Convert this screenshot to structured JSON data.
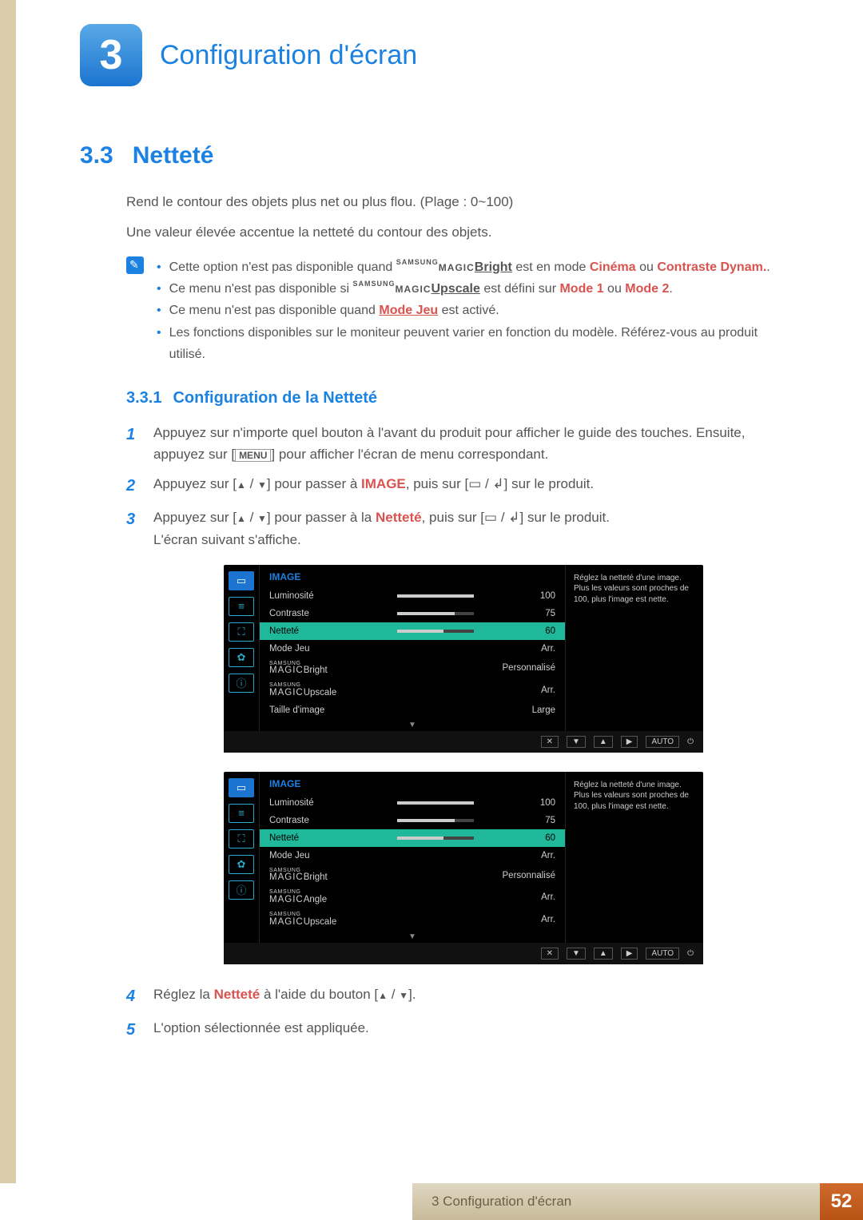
{
  "chapter": {
    "number": "3",
    "title": "Configuration d'écran"
  },
  "section": {
    "number": "3.3",
    "title": "Netteté"
  },
  "intro": {
    "line1": "Rend le contour des objets plus net ou plus flou. (Plage : 0~100)",
    "line2": "Une valeur élevée accentue la netteté du contour des objets."
  },
  "magic_prefix": "SAMSUNG",
  "magic_word": "MAGIC",
  "notes": {
    "n1a": "Cette option n'est pas disponible quand ",
    "n1b_bright": "Bright",
    "n1c": " est en mode ",
    "n1d_cinema": "Cinéma",
    "n1e": " ou ",
    "n1f_dynam": "Contraste Dynam.",
    "n1g": ".",
    "n2a": "Ce menu n'est pas disponible si ",
    "n2b_upscale": "Upscale",
    "n2c": " est défini sur ",
    "n2d_mode1": "Mode 1",
    "n2e": " ou ",
    "n2f_mode2": "Mode 2",
    "n2g": ".",
    "n3a": "Ce menu n'est pas disponible quand ",
    "n3b_modejeu": "Mode Jeu",
    "n3c": " est activé.",
    "n4": "Les fonctions disponibles sur le moniteur peuvent varier en fonction du modèle. Référez-vous au produit utilisé."
  },
  "subsec": {
    "number": "3.3.1",
    "title": "Configuration de la Netteté"
  },
  "steps": {
    "s1a": "Appuyez sur n'importe quel bouton à l'avant du produit pour afficher le guide des touches. Ensuite, appuyez sur [",
    "s1b_menu": "MENU",
    "s1c": "] pour afficher l'écran de menu correspondant.",
    "s2a": "Appuyez sur [",
    "s2b": "] pour passer à ",
    "s2c_image": "IMAGE",
    "s2d": ", puis sur [",
    "s2e": "] sur le produit.",
    "s3a": "Appuyez sur [",
    "s3b": "] pour passer à la ",
    "s3c_nettete": "Netteté",
    "s3d": ", puis sur [",
    "s3e": "] sur le produit.",
    "s3f": "L'écran suivant s'affiche.",
    "s4a": "Réglez la ",
    "s4b_nettete": "Netteté",
    "s4c": " à l'aide du bouton [",
    "s4d": "].",
    "s5": "L'option sélectionnée est appliquée."
  },
  "arrow_up": "▲",
  "arrow_down": "▼",
  "rect_icon": "▭",
  "enter_icon": "↲",
  "osd_common": {
    "category": "IMAGE",
    "tooltip": "Réglez la netteté d'une image. Plus les valeurs sont proches de 100, plus l'image est nette.",
    "footer_keys": [
      "✕",
      "▼",
      "▲",
      "▶"
    ],
    "footer_auto": "AUTO",
    "footer_power": "⏻",
    "highlight_color": "#1fb89a"
  },
  "osd1": {
    "rows": [
      {
        "label": "Luminosité",
        "type": "bar",
        "value": "100",
        "fill": 100
      },
      {
        "label": "Contraste",
        "type": "bar",
        "value": "75",
        "fill": 75
      },
      {
        "label": "Netteté",
        "type": "bar",
        "value": "60",
        "fill": 60,
        "selected": true
      },
      {
        "label": "Mode Jeu",
        "type": "text",
        "value": "Arr."
      },
      {
        "label": "Bright",
        "prefix": true,
        "type": "text",
        "value": "Personnalisé"
      },
      {
        "label": "Upscale",
        "prefix": true,
        "type": "text",
        "value": "Arr."
      },
      {
        "label": "Taille d'image",
        "type": "text",
        "value": "Large"
      }
    ]
  },
  "osd2": {
    "rows": [
      {
        "label": "Luminosité",
        "type": "bar",
        "value": "100",
        "fill": 100
      },
      {
        "label": "Contraste",
        "type": "bar",
        "value": "75",
        "fill": 75
      },
      {
        "label": "Netteté",
        "type": "bar",
        "value": "60",
        "fill": 60,
        "selected": true
      },
      {
        "label": "Mode Jeu",
        "type": "text",
        "value": "Arr."
      },
      {
        "label": "Bright",
        "prefix": true,
        "type": "text",
        "value": "Personnalisé"
      },
      {
        "label": "Angle",
        "prefix": true,
        "type": "text",
        "value": "Arr."
      },
      {
        "label": "Upscale",
        "prefix": true,
        "type": "text",
        "value": "Arr."
      }
    ]
  },
  "footer": {
    "text": "3 Configuration d'écran",
    "page": "52"
  }
}
